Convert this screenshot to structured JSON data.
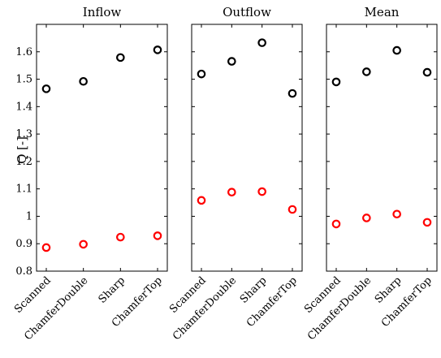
{
  "chart_data": {
    "type": "scatter",
    "ylabel": "Q [-]",
    "ylim": [
      0.8,
      1.7
    ],
    "yticks": [
      0.8,
      0.9,
      1.0,
      1.1,
      1.2,
      1.3,
      1.4,
      1.5,
      1.6
    ],
    "ytick_labels": [
      "0.8",
      "0.9",
      "1",
      "1.1",
      "1.2",
      "1.3",
      "1.4",
      "1.5",
      "1.6"
    ],
    "categories": [
      "Scanned",
      "ChamferDouble",
      "Sharp",
      "ChamferTop"
    ],
    "grid": false,
    "panels": [
      {
        "title": "Inflow",
        "series": [
          {
            "color": "#000000",
            "values": [
              1.465,
              1.492,
              1.579,
              1.607
            ]
          },
          {
            "color": "#ff0000",
            "values": [
              0.886,
              0.898,
              0.924,
              0.929
            ]
          }
        ]
      },
      {
        "title": "Outflow",
        "series": [
          {
            "color": "#000000",
            "values": [
              1.519,
              1.565,
              1.633,
              1.448
            ]
          },
          {
            "color": "#ff0000",
            "values": [
              1.058,
              1.088,
              1.09,
              1.025
            ]
          }
        ]
      },
      {
        "title": "Mean",
        "series": [
          {
            "color": "#000000",
            "values": [
              1.49,
              1.527,
              1.605,
              1.525
            ]
          },
          {
            "color": "#ff0000",
            "values": [
              0.972,
              0.994,
              1.008,
              0.978
            ]
          }
        ]
      }
    ]
  }
}
